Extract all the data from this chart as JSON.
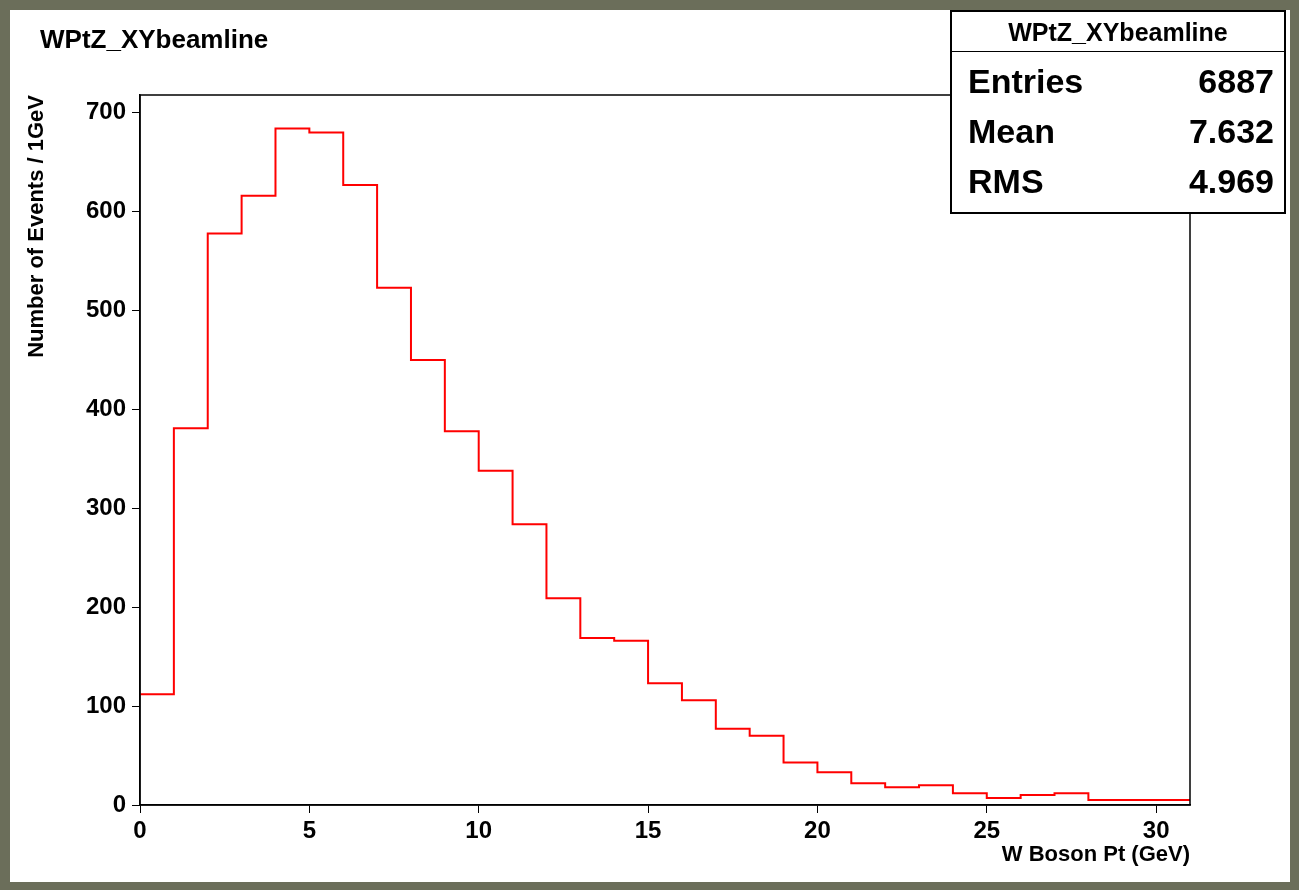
{
  "chart_data": {
    "type": "histogram",
    "title": "WPtZ_XYbeamline",
    "xlabel": "W Boson Pt (GeV)",
    "ylabel": "Number of Events / 1GeV",
    "bins": [
      0,
      1,
      2,
      3,
      4,
      5,
      6,
      7,
      8,
      9,
      10,
      11,
      12,
      13,
      14,
      15,
      16,
      17,
      18,
      19,
      20,
      21,
      22,
      23,
      24,
      25,
      26,
      27,
      28,
      29,
      30,
      31
    ],
    "values": [
      112,
      381,
      578,
      616,
      684,
      680,
      627,
      523,
      450,
      378,
      338,
      284,
      209,
      169,
      166,
      123,
      106,
      77,
      70,
      43,
      33,
      22,
      18,
      20,
      12,
      7,
      10,
      12,
      5,
      5,
      5
    ],
    "color": "#ff0000",
    "xlim": [
      0,
      31
    ],
    "ylim": [
      0,
      718
    ],
    "xticks": [
      0,
      5,
      10,
      15,
      20,
      25,
      30
    ],
    "yticks": [
      0,
      100,
      200,
      300,
      400,
      500,
      600,
      700
    ],
    "grid": false,
    "legend": false,
    "annotations": [
      "WPtZ_XYbeamline",
      "Entries 6887",
      "Mean 7.632",
      "RMS 4.969"
    ]
  }
}
